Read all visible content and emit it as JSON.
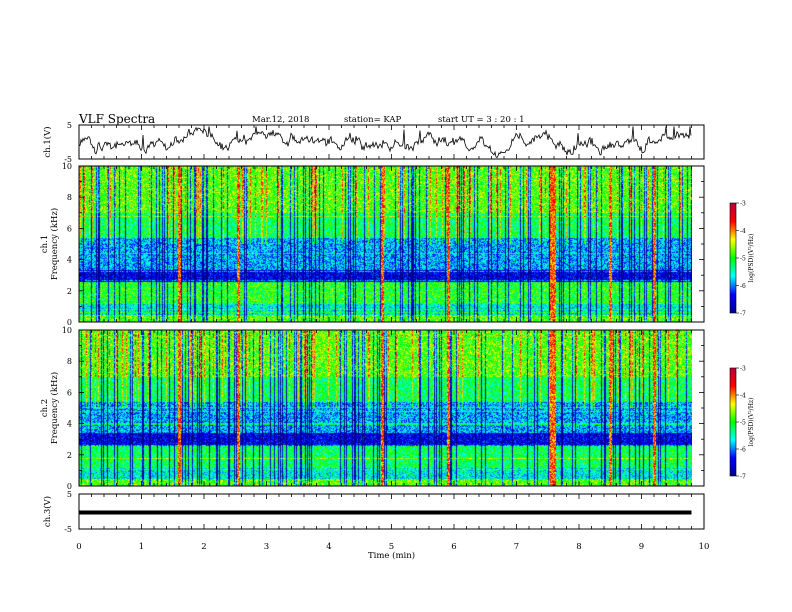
{
  "header": {
    "title": "VLF Spectra",
    "date": "Mar.12, 2018",
    "station": "station= KAP",
    "start": "start  UT =   3 : 20 : 1"
  },
  "chart_data": [
    {
      "type": "line",
      "panel": "ch1-waveform",
      "ylabel": "ch.1(V)",
      "ylim": [
        -5,
        5
      ],
      "yticks": [
        "5",
        "-5"
      ],
      "xlim": [
        0,
        10
      ],
      "x_coverage_max": 9.8,
      "description_series": "noisy waveform roughly between -3 and 4 V, mean about -0.5 V",
      "color": "#000000"
    },
    {
      "type": "heatmap",
      "panel": "ch1-spectrogram",
      "ylabel": "ch.1\nFrequency (kHz)",
      "ylim": [
        0,
        10
      ],
      "yticks": [
        "0",
        "2",
        "4",
        "6",
        "8",
        "10"
      ],
      "xlim": [
        0,
        10
      ],
      "x_coverage_max": 9.8,
      "colorbar": {
        "label": "log(PSD)(V²/Hz)",
        "range": [
          -7,
          -3
        ],
        "ticks": [
          "-3",
          "-4",
          "-5",
          "-6",
          "-7"
        ],
        "colormap": [
          "#00008c",
          "#0000ff",
          "#00ffff",
          "#00ff00",
          "#ffff00",
          "#ff0000",
          "#b4003c"
        ]
      }
    },
    {
      "type": "heatmap",
      "panel": "ch2-spectrogram",
      "ylabel": "ch.2\nFrequency (kHz)",
      "ylim": [
        0,
        10
      ],
      "yticks": [
        "0",
        "2",
        "4",
        "6",
        "8",
        "10"
      ],
      "xlim": [
        0,
        10
      ],
      "x_coverage_max": 9.8,
      "colorbar": {
        "label": "log(PSD)(V²/Hz)",
        "range": [
          -7,
          -3
        ],
        "ticks": [
          "-3",
          "-4",
          "-5",
          "-6",
          "-7"
        ],
        "colormap": [
          "#00008c",
          "#0000ff",
          "#00ffff",
          "#00ff00",
          "#ffff00",
          "#ff0000",
          "#b4003c"
        ]
      }
    },
    {
      "type": "line",
      "panel": "ch3-waveform",
      "ylabel": "ch.3(V)",
      "ylim": [
        -5,
        5
      ],
      "yticks": [
        "5",
        "-5"
      ],
      "xlim": [
        0,
        10
      ],
      "x_coverage_max": 9.8,
      "constant_value": -0.3,
      "color": "#000000",
      "xlabel": "Time (min)",
      "xticks": [
        "0",
        "1",
        "2",
        "3",
        "4",
        "5",
        "6",
        "7",
        "8",
        "9",
        "10"
      ]
    }
  ]
}
